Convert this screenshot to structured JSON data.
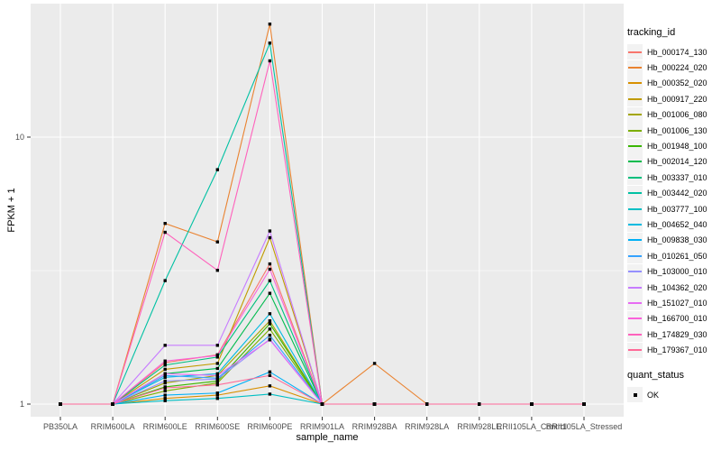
{
  "chart_data": {
    "type": "line",
    "title": "",
    "xlabel": "sample_name",
    "ylabel": "FPKM + 1",
    "y_scale": "log10",
    "y_ticks": [
      1,
      10
    ],
    "ylim": [
      0.9,
      31
    ],
    "grid": "on",
    "legend_position": "right",
    "categories": [
      "PB350LA",
      "RRIM600LA",
      "RRIM600LE",
      "RRIM600SE",
      "RRIM600PE",
      "RRIM901LA",
      "RRIM928BA",
      "RRIM928LA",
      "RRIM928LE",
      "RRII105LA_Control",
      "RRII105LA_Stressed"
    ],
    "series": [
      {
        "name": "Hb_000174_130",
        "color": "#F8766D",
        "values": [
          1,
          1,
          1.43,
          1.53,
          3.35,
          1,
          1,
          1,
          1,
          1,
          1
        ]
      },
      {
        "name": "Hb_000224_020",
        "color": "#EA8331",
        "values": [
          1,
          1,
          4.75,
          4.05,
          26.5,
          1,
          1.42,
          1,
          1,
          1,
          1
        ]
      },
      {
        "name": "Hb_000352_020",
        "color": "#D89000",
        "values": [
          1,
          1,
          1.05,
          1.08,
          1.17,
          1,
          1,
          1,
          1,
          1,
          1
        ]
      },
      {
        "name": "Hb_000917_220",
        "color": "#C09B00",
        "values": [
          1,
          1,
          1.35,
          1.42,
          4.2,
          1,
          1,
          1,
          1,
          1,
          1
        ]
      },
      {
        "name": "Hb_001006_080",
        "color": "#A3A500",
        "values": [
          1,
          1,
          1.2,
          1.28,
          2.05,
          1,
          1,
          1,
          1,
          1,
          1
        ]
      },
      {
        "name": "Hb_001006_130",
        "color": "#7CAE00",
        "values": [
          1,
          1,
          1.12,
          1.2,
          1.91,
          1,
          1,
          1,
          1,
          1,
          1
        ]
      },
      {
        "name": "Hb_001948_100",
        "color": "#39B600",
        "values": [
          1,
          1,
          1.16,
          1.22,
          2.0,
          1,
          1,
          1,
          1,
          1,
          1
        ]
      },
      {
        "name": "Hb_002014_120",
        "color": "#00BB4E",
        "values": [
          1,
          1,
          1.3,
          1.36,
          2.6,
          1,
          1,
          1,
          1,
          1,
          1
        ]
      },
      {
        "name": "Hb_003337_010",
        "color": "#00BF7D",
        "values": [
          1,
          1,
          1.4,
          1.5,
          2.9,
          1,
          1,
          1,
          1,
          1,
          1
        ]
      },
      {
        "name": "Hb_003442_020",
        "color": "#00C1A3",
        "values": [
          1,
          1,
          2.9,
          7.55,
          22.5,
          1,
          1,
          1,
          1,
          1,
          1
        ]
      },
      {
        "name": "Hb_003777_100",
        "color": "#00BFC4",
        "values": [
          1,
          1,
          1.03,
          1.05,
          1.09,
          1,
          1,
          1,
          1,
          1,
          1
        ]
      },
      {
        "name": "Hb_004652_040",
        "color": "#00BAE0",
        "values": [
          1,
          1,
          1.26,
          1.3,
          2.18,
          1,
          1,
          1,
          1,
          1,
          1
        ]
      },
      {
        "name": "Hb_009838_030",
        "color": "#00B0F6",
        "values": [
          1,
          1,
          1.08,
          1.1,
          1.32,
          1,
          1,
          1,
          1,
          1,
          1
        ]
      },
      {
        "name": "Hb_010261_050",
        "color": "#35A2FF",
        "values": [
          1,
          1,
          1.28,
          1.25,
          1.81,
          1,
          1,
          1,
          1,
          1,
          1
        ]
      },
      {
        "name": "Hb_103000_010",
        "color": "#9590FF",
        "values": [
          1,
          1,
          1.22,
          1.24,
          1.75,
          1,
          1,
          1,
          1,
          1,
          1
        ]
      },
      {
        "name": "Hb_104362_020",
        "color": "#C77CFF",
        "values": [
          1,
          1,
          1.66,
          1.66,
          4.45,
          1,
          1,
          1,
          1,
          1,
          1
        ]
      },
      {
        "name": "Hb_151027_010",
        "color": "#E76BF3",
        "values": [
          1,
          1,
          1.3,
          1.28,
          1.74,
          1,
          1,
          1,
          1,
          1,
          1
        ]
      },
      {
        "name": "Hb_166700_010",
        "color": "#FA62DB",
        "values": [
          1,
          1,
          1.45,
          1.52,
          3.2,
          1,
          1,
          1,
          1,
          1,
          1
        ]
      },
      {
        "name": "Hb_174829_030",
        "color": "#FF62BC",
        "values": [
          1,
          1,
          4.4,
          3.17,
          19.3,
          1,
          1,
          1,
          1,
          1,
          1
        ]
      },
      {
        "name": "Hb_179367_010",
        "color": "#FF6A98",
        "values": [
          1,
          1,
          1.15,
          1.18,
          1.28,
          1,
          1,
          1,
          1,
          1,
          1
        ]
      }
    ]
  },
  "legend": {
    "tracking_title": "tracking_id",
    "quant_title": "quant_status",
    "quant_items": [
      {
        "label": "OK"
      }
    ]
  },
  "theme": {
    "panel_bg": "#EBEBEB",
    "grid_color": "#FFFFFF",
    "tick_text_color": "#4D4D4D",
    "tick_mark_color": "#333333",
    "point_color": "#000000",
    "key_bg": "#F2F2F2"
  }
}
